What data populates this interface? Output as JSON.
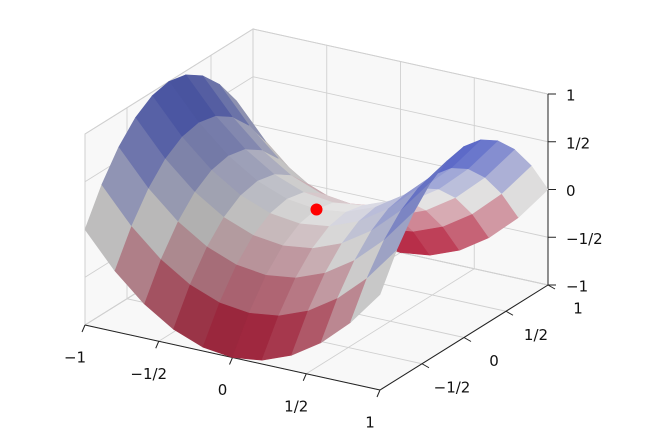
{
  "chart_data": {
    "type": "surface3d",
    "x": [
      -1,
      -0.8,
      -0.6,
      -0.4,
      -0.2,
      0,
      0.2,
      0.4,
      0.6,
      0.8,
      1
    ],
    "y": [
      -1,
      -0.8,
      -0.6,
      -0.4,
      -0.2,
      0,
      0.2,
      0.4,
      0.6,
      0.8,
      1
    ],
    "z": [
      [
        0,
        -0.36,
        -0.64,
        -0.84,
        -0.96,
        -1,
        -0.96,
        -0.84,
        -0.64,
        -0.36,
        0
      ],
      [
        0.36,
        0,
        -0.28,
        -0.48,
        -0.6,
        -0.64,
        -0.6,
        -0.48,
        -0.28,
        0,
        0.36
      ],
      [
        0.64,
        0.28,
        0,
        -0.2,
        -0.32,
        -0.36,
        -0.32,
        -0.2,
        0,
        0.28,
        0.64
      ],
      [
        0.84,
        0.48,
        0.2,
        0,
        -0.12,
        -0.16,
        -0.12,
        0,
        0.2,
        0.48,
        0.84
      ],
      [
        0.96,
        0.6,
        0.32,
        0.12,
        0,
        -0.04,
        0,
        0.12,
        0.32,
        0.6,
        0.96
      ],
      [
        1,
        0.64,
        0.36,
        0.16,
        0.04,
        0,
        0.04,
        0.16,
        0.36,
        0.64,
        1
      ],
      [
        0.96,
        0.6,
        0.32,
        0.12,
        0,
        -0.04,
        0,
        0.12,
        0.32,
        0.6,
        0.96
      ],
      [
        0.84,
        0.48,
        0.2,
        0,
        -0.12,
        -0.16,
        -0.12,
        0,
        0.2,
        0.48,
        0.84
      ],
      [
        0.64,
        0.28,
        0,
        -0.2,
        -0.32,
        -0.36,
        -0.32,
        -0.2,
        0,
        0.28,
        0.64
      ],
      [
        0.36,
        0,
        -0.28,
        -0.48,
        -0.6,
        -0.64,
        -0.6,
        -0.48,
        -0.28,
        0,
        0.36
      ],
      [
        0,
        -0.36,
        -0.64,
        -0.84,
        -0.96,
        -1,
        -0.96,
        -0.84,
        -0.64,
        -0.36,
        0
      ]
    ],
    "colormap": [
      "#b40426",
      "#dddcdc",
      "#3b4cc0"
    ],
    "point": {
      "x": 0,
      "y": 0,
      "z": 0,
      "color": "#ff0000"
    },
    "xlim": [
      -1,
      1
    ],
    "ylim": [
      -1,
      1
    ],
    "zlim": [
      -1,
      1
    ],
    "xticks": [
      {
        "value": -1,
        "label": "−1"
      },
      {
        "value": -0.5,
        "label": "−1/2"
      },
      0,
      {
        "value": 0.5,
        "label": "1/2"
      },
      1
    ],
    "yticks": [
      {
        "value": -0.5,
        "label": "−1/2"
      },
      0,
      {
        "value": 0.5,
        "label": "1/2"
      },
      1
    ],
    "zticks": [
      {
        "value": -1,
        "label": "−1"
      },
      {
        "value": -0.5,
        "label": "−1/2"
      },
      0,
      {
        "value": 0.5,
        "label": "1/2"
      },
      1
    ],
    "grid": true
  }
}
